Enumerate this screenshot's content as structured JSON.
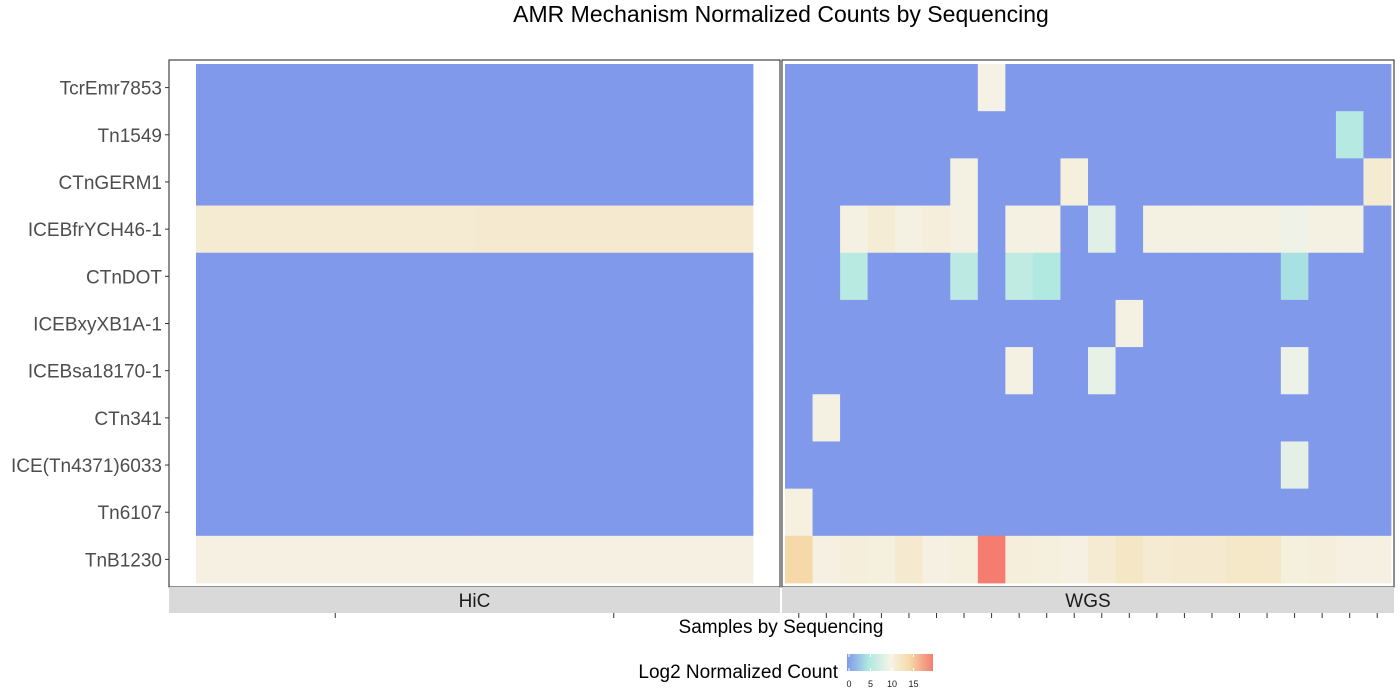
{
  "chart_data": {
    "type": "heatmap",
    "title": "AMR Mechanism Normalized Counts by Sequencing",
    "xlabel": "Samples by Sequencing",
    "ylabel": "",
    "rows": [
      "TcrEmr7853",
      "Tn1549",
      "CTnGERM1",
      "ICEBfrYCH46-1",
      "CTnDOT",
      "ICEBxyXB1A-1",
      "ICEBsa18170-1",
      "CTn341",
      "ICE(Tn4371)6033",
      "Tn6107",
      "TnB1230"
    ],
    "legend": {
      "title": "Log2 Normalized Count",
      "ticks": [
        0,
        5,
        10,
        15
      ],
      "range": [
        0,
        20
      ],
      "colors": [
        "#8099eb",
        "#aee8e0",
        "#f5f3e8",
        "#f5dcaa",
        "#f57d70"
      ],
      "stops": [
        0,
        0.25,
        0.5,
        0.72,
        1
      ]
    },
    "panels": [
      {
        "name": "HiC",
        "samples": 2,
        "values": [
          [
            0,
            0
          ],
          [
            0,
            0
          ],
          [
            0,
            0
          ],
          [
            11.5,
            11.8
          ],
          [
            0,
            0
          ],
          [
            0,
            0
          ],
          [
            0,
            0
          ],
          [
            0,
            0
          ],
          [
            0,
            0
          ],
          [
            0,
            0
          ],
          [
            10.5,
            10.5
          ]
        ]
      },
      {
        "name": "WGS",
        "samples": 22,
        "values": [
          [
            0,
            0,
            0,
            0,
            0,
            0,
            0,
            10.3,
            0,
            0,
            0,
            0,
            0,
            0,
            0,
            0,
            0,
            0,
            0,
            0,
            0,
            0
          ],
          [
            0,
            0,
            0,
            0,
            0,
            0,
            0,
            0,
            0,
            0,
            0,
            0,
            0,
            0,
            0,
            0,
            0,
            0,
            0,
            0,
            5.5,
            0
          ],
          [
            0,
            0,
            0,
            0,
            0,
            0,
            10.4,
            0,
            0,
            0,
            10.8,
            0,
            0,
            0,
            0,
            0,
            0,
            0,
            0,
            0,
            0,
            11.5
          ],
          [
            0,
            0,
            10.4,
            11.3,
            10.4,
            11.0,
            10.4,
            0,
            10.4,
            10.4,
            0,
            8.6,
            0,
            10.4,
            10.4,
            10.4,
            10.4,
            10.4,
            9.6,
            10.4,
            10.4,
            0
          ],
          [
            0,
            0,
            5.8,
            0,
            0,
            0,
            6.0,
            0,
            6.2,
            5.2,
            0,
            0,
            0,
            0,
            0,
            0,
            0,
            0,
            4.5,
            0,
            0,
            0
          ],
          [
            0,
            0,
            0,
            0,
            0,
            0,
            0,
            0,
            0,
            0,
            0,
            0,
            10.4,
            0,
            0,
            0,
            0,
            0,
            0,
            0,
            0,
            0
          ],
          [
            0,
            0,
            0,
            0,
            0,
            0,
            0,
            0,
            10.4,
            0,
            0,
            9.0,
            0,
            0,
            0,
            0,
            0,
            0,
            9.4,
            0,
            0,
            0
          ],
          [
            0,
            10.4,
            0,
            0,
            0,
            0,
            0,
            0,
            0,
            0,
            0,
            0,
            0,
            0,
            0,
            0,
            0,
            0,
            0,
            0,
            0,
            0
          ],
          [
            0,
            0,
            0,
            0,
            0,
            0,
            0,
            0,
            0,
            0,
            0,
            0,
            0,
            0,
            0,
            0,
            0,
            0,
            8.8,
            0,
            0,
            0
          ],
          [
            10.6,
            0,
            0,
            0,
            0,
            0,
            0,
            0,
            0,
            0,
            0,
            0,
            0,
            0,
            0,
            0,
            0,
            0,
            0,
            0,
            0,
            0
          ],
          [
            14.6,
            10.5,
            11.0,
            10.8,
            11.8,
            10.5,
            10.8,
            20,
            11.0,
            10.8,
            10.5,
            11.5,
            12.5,
            11.5,
            11.8,
            11.8,
            12.2,
            12.2,
            10.8,
            11.0,
            10.5,
            10.5
          ]
        ]
      }
    ]
  }
}
